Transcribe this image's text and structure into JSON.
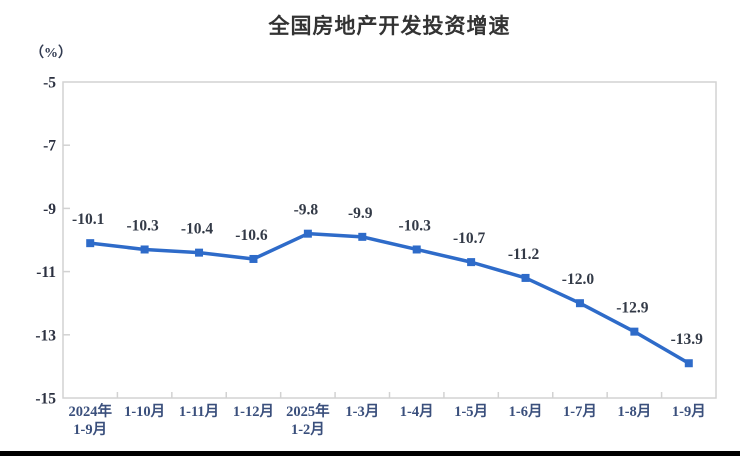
{
  "chart_data": {
    "type": "line",
    "title": "全国房地产开发投资增速",
    "unit_label": "（%）",
    "categories": [
      "2024年\n1-9月",
      "1-10月",
      "1-11月",
      "1-12月",
      "2025年\n1-2月",
      "1-3月",
      "1-4月",
      "1-5月",
      "1-6月",
      "1-7月",
      "1-8月",
      "1-9月"
    ],
    "values": [
      -10.1,
      -10.3,
      -10.4,
      -10.6,
      -9.8,
      -9.9,
      -10.3,
      -10.7,
      -11.2,
      -12.0,
      -12.9,
      -13.9
    ],
    "data_labels": [
      "-10.1",
      "-10.3",
      "-10.4",
      "-10.6",
      "-9.8",
      "-9.9",
      "-10.3",
      "-10.7",
      "-11.2",
      "-12.0",
      "-12.9",
      "-13.9"
    ],
    "y_ticks": [
      -5,
      -7,
      -9,
      -11,
      -13,
      -15
    ],
    "y_tick_labels": [
      "-5",
      "-7",
      "-9",
      "-11",
      "-13",
      "-15"
    ],
    "ylim": [
      -15,
      -5
    ],
    "grid": false,
    "legend": "none",
    "xlabel": "",
    "ylabel": ""
  },
  "colors": {
    "series": "#2e6bc9",
    "plot_border": "#d2d2d2",
    "title_text": "#333333",
    "y_axis_text": "#2b3040",
    "x_axis_text": "#3a4f7c",
    "data_label_text": "#333a47",
    "bottom_bar": "#000000",
    "background": "#ffffff"
  }
}
